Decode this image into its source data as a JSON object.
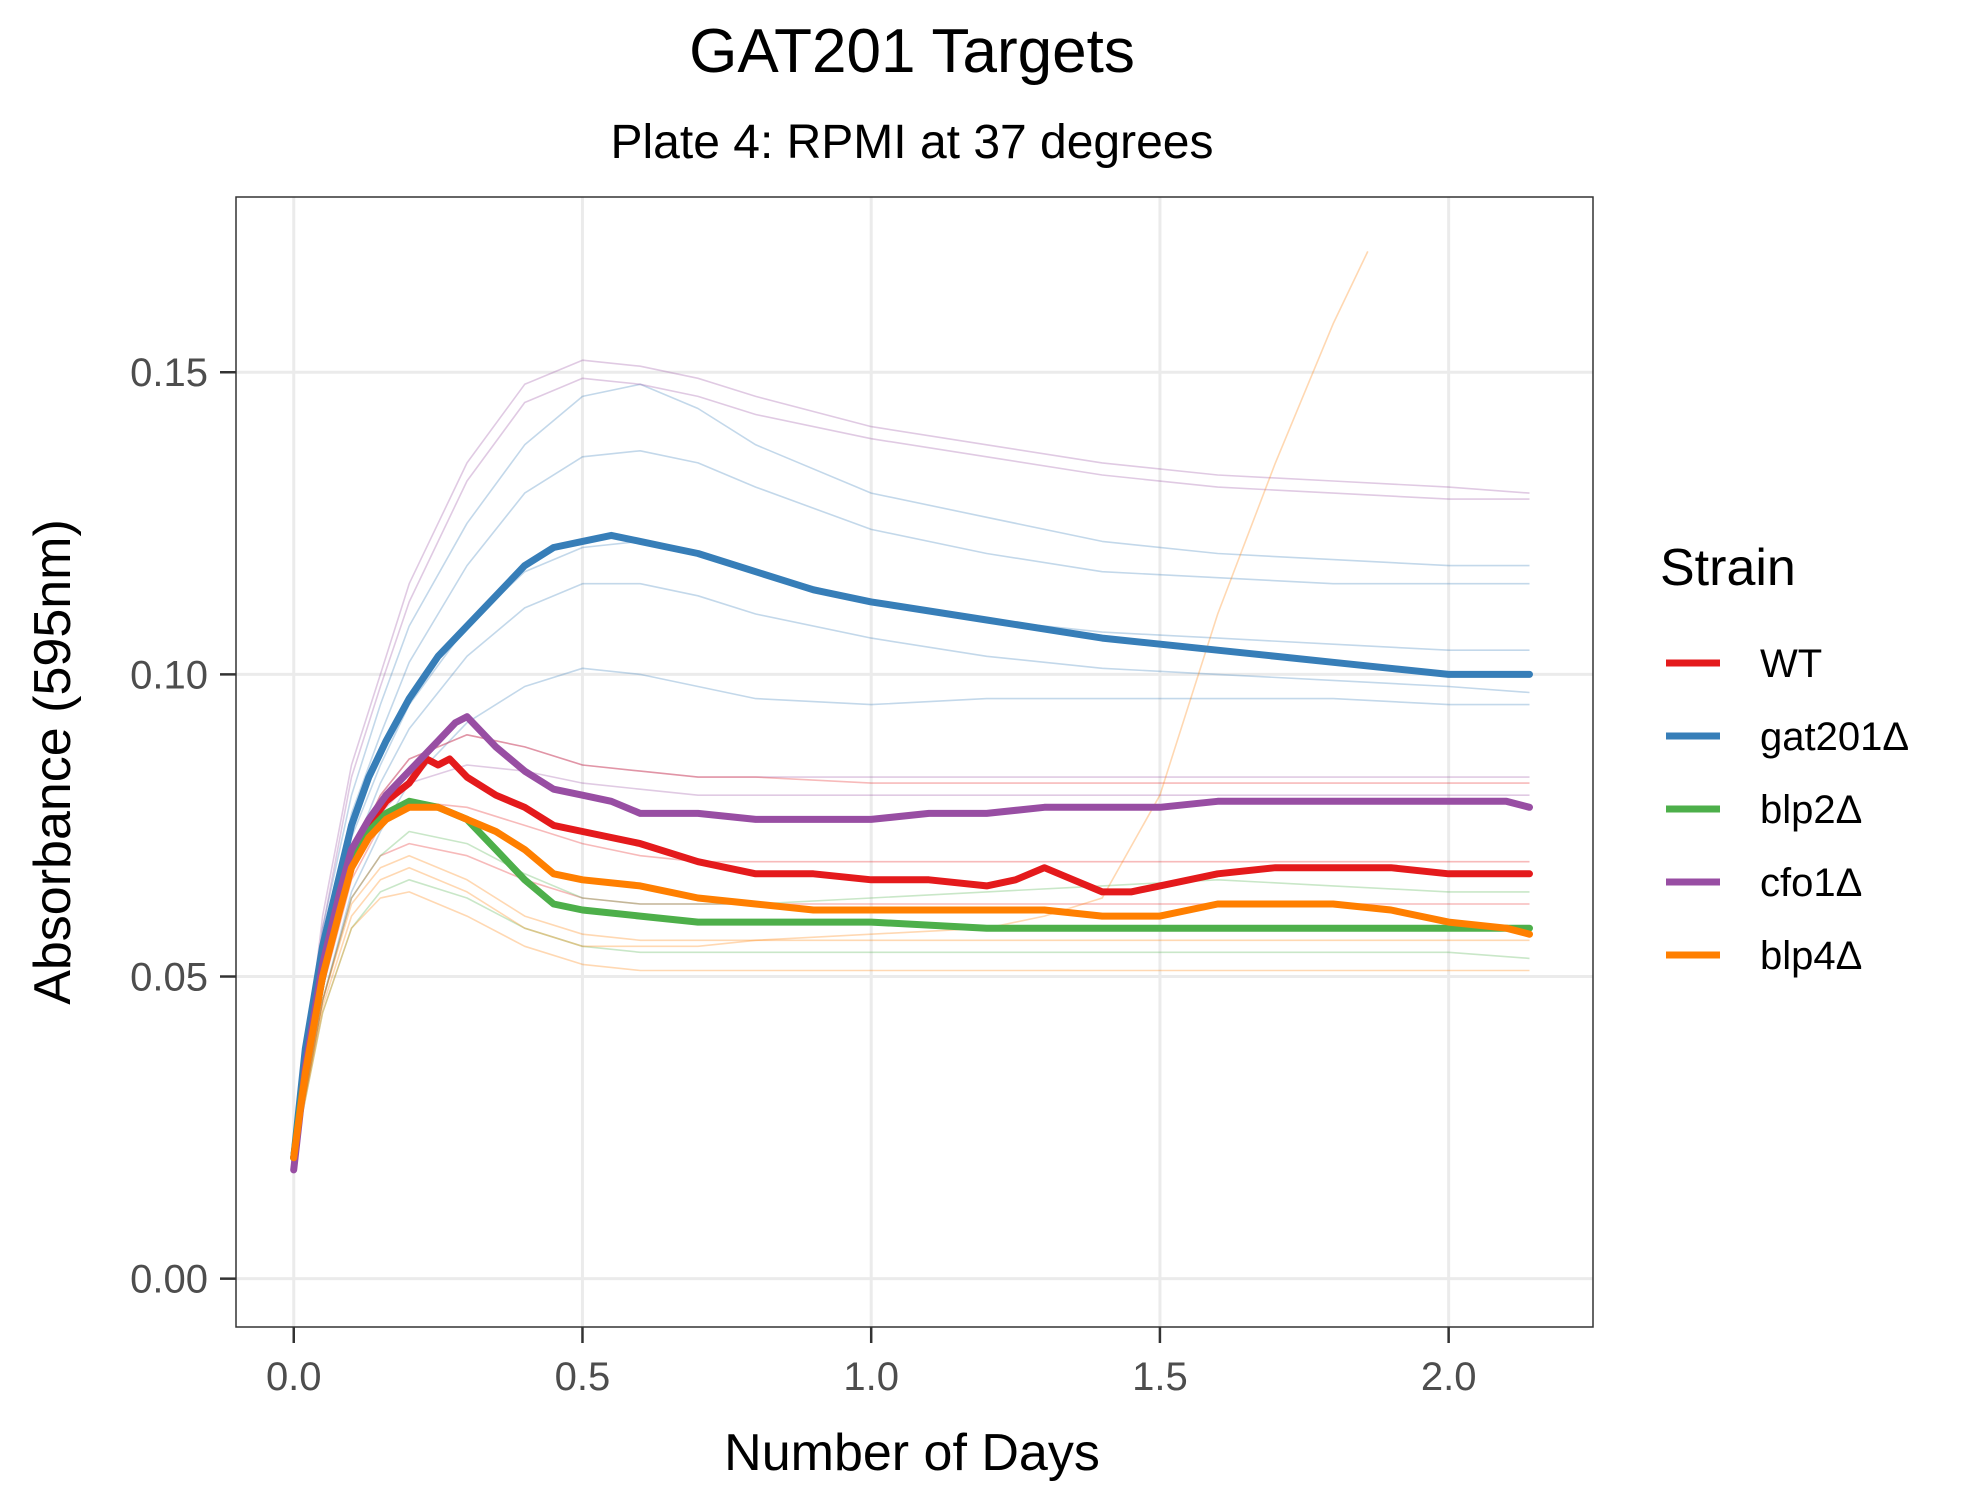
{
  "chart_data": {
    "type": "line",
    "title": "GAT201 Targets",
    "subtitle": "Plate 4: RPMI at 37 degrees",
    "xlabel": "Number of Days",
    "ylabel": "Absorbance (595nm)",
    "xlim": [
      -0.1,
      2.25
    ],
    "ylim": [
      -0.008,
      0.179
    ],
    "xticks": [
      0.0,
      0.5,
      1.0,
      1.5,
      2.0
    ],
    "xtick_labels": [
      "0.0",
      "0.5",
      "1.0",
      "1.5",
      "2.0"
    ],
    "yticks": [
      0.0,
      0.05,
      0.1,
      0.15
    ],
    "ytick_labels": [
      "0.00",
      "0.05",
      "0.10",
      "0.15"
    ],
    "grid": true,
    "legend_title": "Strain",
    "legend_position": "right",
    "series": [
      {
        "name": "WT",
        "color": "#e41a1c",
        "x": [
          0.0,
          0.02,
          0.05,
          0.08,
          0.1,
          0.13,
          0.16,
          0.2,
          0.23,
          0.25,
          0.27,
          0.3,
          0.35,
          0.4,
          0.45,
          0.5,
          0.6,
          0.7,
          0.8,
          0.9,
          1.0,
          1.1,
          1.2,
          1.25,
          1.3,
          1.35,
          1.4,
          1.45,
          1.5,
          1.6,
          1.7,
          1.8,
          1.9,
          2.0,
          2.1,
          2.14
        ],
        "y": [
          0.02,
          0.035,
          0.05,
          0.063,
          0.07,
          0.075,
          0.079,
          0.082,
          0.086,
          0.085,
          0.086,
          0.083,
          0.08,
          0.078,
          0.075,
          0.074,
          0.072,
          0.069,
          0.067,
          0.067,
          0.066,
          0.066,
          0.065,
          0.066,
          0.068,
          0.066,
          0.064,
          0.064,
          0.065,
          0.067,
          0.068,
          0.068,
          0.068,
          0.067,
          0.067,
          0.067
        ]
      },
      {
        "name": "gat201Δ",
        "color": "#377eb8",
        "x": [
          0.0,
          0.02,
          0.05,
          0.08,
          0.1,
          0.13,
          0.16,
          0.2,
          0.25,
          0.3,
          0.35,
          0.4,
          0.45,
          0.5,
          0.55,
          0.6,
          0.65,
          0.7,
          0.8,
          0.9,
          1.0,
          1.2,
          1.4,
          1.6,
          1.8,
          2.0,
          2.14
        ],
        "y": [
          0.02,
          0.038,
          0.055,
          0.067,
          0.075,
          0.083,
          0.089,
          0.096,
          0.103,
          0.108,
          0.113,
          0.118,
          0.121,
          0.122,
          0.123,
          0.122,
          0.121,
          0.12,
          0.117,
          0.114,
          0.112,
          0.109,
          0.106,
          0.104,
          0.102,
          0.1,
          0.1
        ]
      },
      {
        "name": "blp2Δ",
        "color": "#4daf4a",
        "x": [
          0.0,
          0.02,
          0.05,
          0.08,
          0.1,
          0.13,
          0.16,
          0.2,
          0.25,
          0.3,
          0.35,
          0.4,
          0.45,
          0.5,
          0.6,
          0.7,
          0.8,
          0.9,
          1.0,
          1.2,
          1.4,
          1.6,
          1.8,
          2.0,
          2.14
        ],
        "y": [
          0.02,
          0.035,
          0.05,
          0.062,
          0.069,
          0.074,
          0.077,
          0.079,
          0.078,
          0.076,
          0.071,
          0.066,
          0.062,
          0.061,
          0.06,
          0.059,
          0.059,
          0.059,
          0.059,
          0.058,
          0.058,
          0.058,
          0.058,
          0.058,
          0.058
        ]
      },
      {
        "name": "cfo1Δ",
        "color": "#984ea3",
        "x": [
          0.0,
          0.02,
          0.05,
          0.08,
          0.1,
          0.13,
          0.16,
          0.2,
          0.25,
          0.28,
          0.3,
          0.33,
          0.35,
          0.4,
          0.45,
          0.5,
          0.55,
          0.6,
          0.7,
          0.8,
          0.9,
          1.0,
          1.1,
          1.2,
          1.3,
          1.4,
          1.5,
          1.6,
          1.7,
          1.8,
          1.9,
          2.0,
          2.1,
          2.14
        ],
        "y": [
          0.018,
          0.035,
          0.052,
          0.064,
          0.071,
          0.076,
          0.08,
          0.084,
          0.089,
          0.092,
          0.093,
          0.09,
          0.088,
          0.084,
          0.081,
          0.08,
          0.079,
          0.077,
          0.077,
          0.076,
          0.076,
          0.076,
          0.077,
          0.077,
          0.078,
          0.078,
          0.078,
          0.079,
          0.079,
          0.079,
          0.079,
          0.079,
          0.079,
          0.078
        ]
      },
      {
        "name": "blp4Δ",
        "color": "#ff7f00",
        "x": [
          0.0,
          0.02,
          0.05,
          0.08,
          0.1,
          0.13,
          0.16,
          0.2,
          0.25,
          0.3,
          0.35,
          0.4,
          0.45,
          0.5,
          0.6,
          0.7,
          0.8,
          0.9,
          1.0,
          1.1,
          1.2,
          1.3,
          1.4,
          1.5,
          1.6,
          1.7,
          1.8,
          1.9,
          2.0,
          2.1,
          2.14
        ],
        "y": [
          0.02,
          0.034,
          0.05,
          0.061,
          0.068,
          0.073,
          0.076,
          0.078,
          0.078,
          0.076,
          0.074,
          0.071,
          0.067,
          0.066,
          0.065,
          0.063,
          0.062,
          0.061,
          0.061,
          0.061,
          0.061,
          0.061,
          0.06,
          0.06,
          0.062,
          0.062,
          0.062,
          0.061,
          0.059,
          0.058,
          0.057
        ]
      }
    ],
    "replicates": [
      {
        "color": "#377eb8",
        "x": [
          0.0,
          0.05,
          0.1,
          0.15,
          0.2,
          0.3,
          0.4,
          0.5,
          0.6,
          0.7,
          0.8,
          1.0,
          1.2,
          1.4,
          1.6,
          1.8,
          2.0,
          2.14
        ],
        "y": [
          0.02,
          0.058,
          0.08,
          0.095,
          0.108,
          0.125,
          0.138,
          0.146,
          0.148,
          0.144,
          0.138,
          0.13,
          0.126,
          0.122,
          0.12,
          0.119,
          0.118,
          0.118
        ]
      },
      {
        "color": "#377eb8",
        "x": [
          0.0,
          0.05,
          0.1,
          0.15,
          0.2,
          0.3,
          0.4,
          0.5,
          0.6,
          0.7,
          0.8,
          1.0,
          1.2,
          1.4,
          1.6,
          1.8,
          2.0,
          2.14
        ],
        "y": [
          0.02,
          0.055,
          0.077,
          0.09,
          0.102,
          0.118,
          0.13,
          0.136,
          0.137,
          0.135,
          0.131,
          0.124,
          0.12,
          0.117,
          0.116,
          0.115,
          0.115,
          0.115
        ]
      },
      {
        "color": "#377eb8",
        "x": [
          0.0,
          0.05,
          0.1,
          0.15,
          0.2,
          0.3,
          0.4,
          0.5,
          0.6,
          0.7,
          0.8,
          1.0,
          1.2,
          1.4,
          1.6,
          1.8,
          2.0,
          2.14
        ],
        "y": [
          0.02,
          0.052,
          0.073,
          0.085,
          0.095,
          0.108,
          0.117,
          0.121,
          0.122,
          0.12,
          0.117,
          0.112,
          0.109,
          0.107,
          0.106,
          0.105,
          0.104,
          0.104
        ]
      },
      {
        "color": "#377eb8",
        "x": [
          0.0,
          0.05,
          0.1,
          0.15,
          0.2,
          0.3,
          0.4,
          0.5,
          0.6,
          0.7,
          0.8,
          1.0,
          1.2,
          1.4,
          1.6,
          1.8,
          2.0,
          2.14
        ],
        "y": [
          0.02,
          0.05,
          0.07,
          0.082,
          0.091,
          0.103,
          0.111,
          0.115,
          0.115,
          0.113,
          0.11,
          0.106,
          0.103,
          0.101,
          0.1,
          0.099,
          0.098,
          0.097
        ]
      },
      {
        "color": "#377eb8",
        "x": [
          0.0,
          0.05,
          0.1,
          0.15,
          0.2,
          0.3,
          0.4,
          0.5,
          0.6,
          0.7,
          0.8,
          1.0,
          1.2,
          1.4,
          1.6,
          1.8,
          2.0,
          2.14
        ],
        "y": [
          0.02,
          0.046,
          0.064,
          0.074,
          0.082,
          0.092,
          0.098,
          0.101,
          0.1,
          0.098,
          0.096,
          0.095,
          0.096,
          0.096,
          0.096,
          0.096,
          0.095,
          0.095
        ]
      },
      {
        "color": "#984ea3",
        "x": [
          0.0,
          0.05,
          0.1,
          0.15,
          0.2,
          0.3,
          0.4,
          0.5,
          0.6,
          0.7,
          0.8,
          1.0,
          1.2,
          1.4,
          1.6,
          1.8,
          2.0,
          2.14
        ],
        "y": [
          0.02,
          0.06,
          0.085,
          0.1,
          0.115,
          0.135,
          0.148,
          0.152,
          0.151,
          0.149,
          0.146,
          0.141,
          0.138,
          0.135,
          0.133,
          0.132,
          0.131,
          0.13
        ]
      },
      {
        "color": "#984ea3",
        "x": [
          0.0,
          0.05,
          0.1,
          0.15,
          0.2,
          0.3,
          0.4,
          0.5,
          0.6,
          0.7,
          0.8,
          1.0,
          1.2,
          1.4,
          1.6,
          1.8,
          2.0,
          2.14
        ],
        "y": [
          0.02,
          0.058,
          0.083,
          0.098,
          0.112,
          0.132,
          0.145,
          0.149,
          0.148,
          0.146,
          0.143,
          0.139,
          0.136,
          0.133,
          0.131,
          0.13,
          0.129,
          0.129
        ]
      },
      {
        "color": "#984ea3",
        "x": [
          0.0,
          0.05,
          0.1,
          0.15,
          0.2,
          0.3,
          0.4,
          0.5,
          0.6,
          0.7,
          0.8,
          1.0,
          1.2,
          1.4,
          1.6,
          1.8,
          2.0,
          2.14
        ],
        "y": [
          0.02,
          0.05,
          0.07,
          0.08,
          0.086,
          0.09,
          0.088,
          0.085,
          0.084,
          0.083,
          0.083,
          0.083,
          0.083,
          0.083,
          0.083,
          0.083,
          0.083,
          0.083
        ]
      },
      {
        "color": "#984ea3",
        "x": [
          0.0,
          0.05,
          0.1,
          0.15,
          0.2,
          0.3,
          0.4,
          0.5,
          0.6,
          0.7,
          0.8,
          1.0,
          1.2,
          1.4,
          1.6,
          1.8,
          2.0,
          2.14
        ],
        "y": [
          0.02,
          0.048,
          0.067,
          0.077,
          0.082,
          0.085,
          0.084,
          0.082,
          0.081,
          0.08,
          0.08,
          0.08,
          0.08,
          0.08,
          0.08,
          0.08,
          0.08,
          0.08
        ]
      },
      {
        "color": "#e41a1c",
        "x": [
          0.0,
          0.05,
          0.1,
          0.15,
          0.2,
          0.3,
          0.4,
          0.5,
          0.6,
          0.7,
          0.8,
          1.0,
          1.2,
          1.4,
          1.6,
          1.8,
          2.0,
          2.14
        ],
        "y": [
          0.02,
          0.05,
          0.07,
          0.08,
          0.086,
          0.09,
          0.088,
          0.085,
          0.084,
          0.083,
          0.083,
          0.082,
          0.082,
          0.082,
          0.082,
          0.082,
          0.082,
          0.082
        ]
      },
      {
        "color": "#e41a1c",
        "x": [
          0.0,
          0.05,
          0.1,
          0.15,
          0.2,
          0.3,
          0.4,
          0.5,
          0.6,
          0.7,
          0.8,
          1.0,
          1.2,
          1.4,
          1.6,
          1.8,
          2.0,
          2.14
        ],
        "y": [
          0.02,
          0.048,
          0.066,
          0.075,
          0.079,
          0.078,
          0.075,
          0.072,
          0.07,
          0.069,
          0.069,
          0.069,
          0.069,
          0.069,
          0.069,
          0.069,
          0.069,
          0.069
        ]
      },
      {
        "color": "#e41a1c",
        "x": [
          0.0,
          0.05,
          0.1,
          0.15,
          0.2,
          0.3,
          0.4,
          0.5,
          0.6,
          0.7,
          0.8,
          1.0,
          1.2,
          1.4,
          1.6,
          1.8,
          2.0,
          2.14
        ],
        "y": [
          0.02,
          0.046,
          0.063,
          0.07,
          0.072,
          0.07,
          0.066,
          0.063,
          0.062,
          0.062,
          0.062,
          0.062,
          0.062,
          0.062,
          0.062,
          0.062,
          0.062,
          0.062
        ]
      },
      {
        "color": "#4daf4a",
        "x": [
          0.0,
          0.05,
          0.1,
          0.15,
          0.2,
          0.3,
          0.4,
          0.5,
          0.6,
          0.7,
          0.8,
          1.0,
          1.2,
          1.4,
          1.6,
          1.8,
          2.0,
          2.14
        ],
        "y": [
          0.02,
          0.046,
          0.063,
          0.07,
          0.074,
          0.072,
          0.067,
          0.063,
          0.062,
          0.062,
          0.062,
          0.063,
          0.064,
          0.065,
          0.066,
          0.065,
          0.064,
          0.064
        ]
      },
      {
        "color": "#4daf4a",
        "x": [
          0.0,
          0.05,
          0.1,
          0.15,
          0.2,
          0.3,
          0.4,
          0.5,
          0.6,
          0.7,
          0.8,
          1.0,
          1.2,
          1.4,
          1.6,
          1.8,
          2.0,
          2.14
        ],
        "y": [
          0.02,
          0.044,
          0.058,
          0.064,
          0.066,
          0.063,
          0.058,
          0.055,
          0.054,
          0.054,
          0.054,
          0.054,
          0.054,
          0.054,
          0.054,
          0.054,
          0.054,
          0.053
        ]
      },
      {
        "color": "#ff7f00",
        "x": [
          0.0,
          0.05,
          0.1,
          0.15,
          0.2,
          0.3,
          0.4,
          0.5,
          0.6,
          0.7,
          0.8,
          1.0,
          1.2,
          1.4,
          1.6,
          1.8,
          2.0,
          2.14
        ],
        "y": [
          0.02,
          0.046,
          0.062,
          0.068,
          0.07,
          0.066,
          0.06,
          0.057,
          0.056,
          0.056,
          0.056,
          0.056,
          0.056,
          0.056,
          0.056,
          0.056,
          0.056,
          0.056
        ]
      },
      {
        "color": "#ff7f00",
        "x": [
          0.0,
          0.05,
          0.1,
          0.15,
          0.2,
          0.3,
          0.4,
          0.5,
          0.6,
          0.7,
          0.8,
          1.0,
          1.2,
          1.4,
          1.6,
          1.8,
          2.0,
          2.14
        ],
        "y": [
          0.02,
          0.044,
          0.058,
          0.063,
          0.064,
          0.06,
          0.055,
          0.052,
          0.051,
          0.051,
          0.051,
          0.051,
          0.051,
          0.051,
          0.051,
          0.051,
          0.051,
          0.051
        ]
      },
      {
        "color": "#ff7f00",
        "x": [
          0.0,
          0.05,
          0.1,
          0.15,
          0.2,
          0.3,
          0.4,
          0.5,
          0.6,
          0.7,
          0.8,
          1.0,
          1.2,
          1.3,
          1.4,
          1.5,
          1.6,
          1.7,
          1.8,
          1.86
        ],
        "y": [
          0.02,
          0.045,
          0.06,
          0.066,
          0.068,
          0.064,
          0.058,
          0.055,
          0.055,
          0.055,
          0.056,
          0.057,
          0.058,
          0.06,
          0.063,
          0.08,
          0.11,
          0.135,
          0.158,
          0.17
        ]
      }
    ]
  }
}
